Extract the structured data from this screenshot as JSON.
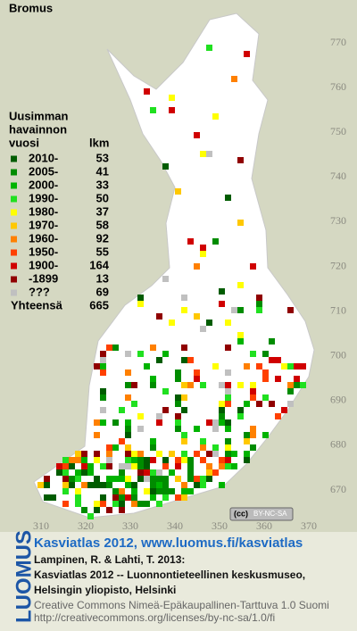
{
  "map": {
    "title": "Bromus",
    "legend": {
      "heading": [
        "Uusimman",
        "havainnon",
        "vuosi"
      ],
      "count_heading": "lkm",
      "rows": [
        {
          "label": "2010-",
          "count": 53,
          "color": "#005c00"
        },
        {
          "label": "2005-",
          "count": 41,
          "color": "#008c00"
        },
        {
          "label": "2000-",
          "count": 33,
          "color": "#00b400"
        },
        {
          "label": "1990-",
          "count": 50,
          "color": "#20e020"
        },
        {
          "label": "1980-",
          "count": 37,
          "color": "#ffff00"
        },
        {
          "label": "1970-",
          "count": 58,
          "color": "#ffc800"
        },
        {
          "label": "1960-",
          "count": 92,
          "color": "#ff8000"
        },
        {
          "label": "1950-",
          "count": 55,
          "color": "#ff4000"
        },
        {
          "label": "1900-",
          "count": 164,
          "color": "#d00000"
        },
        {
          "label": "-1899",
          "count": 13,
          "color": "#900000"
        },
        {
          "label": "???",
          "count": 69,
          "color": "#c0c0c0"
        }
      ],
      "total_label": "Yhteensä",
      "total": 665
    },
    "y_axis_labels": [
      770,
      760,
      750,
      740,
      730,
      720,
      710,
      700,
      690,
      680,
      670
    ],
    "x_axis_labels": [
      310,
      320,
      330,
      340,
      350,
      360,
      370
    ],
    "license_badge": [
      "(cc)",
      "BY-NC-SA"
    ]
  },
  "credits": {
    "logo": "LUOMUS",
    "link": "Kasviatlas 2012, www.luomus.fi/kasviatlas",
    "citation": [
      "Lampinen, R. & Lahti, T. 2013:",
      "Kasviatlas 2012 -- Luonnontieteellinen keskusmuseo,",
      "Helsingin yliopisto, Helsinki"
    ],
    "license": [
      "Creative Commons Nimeä-Epäkaupallinen-Tarttuva 1.0 Suomi",
      "http://creativecommons.org/licenses/by-nc-sa/1.0/fi"
    ]
  }
}
